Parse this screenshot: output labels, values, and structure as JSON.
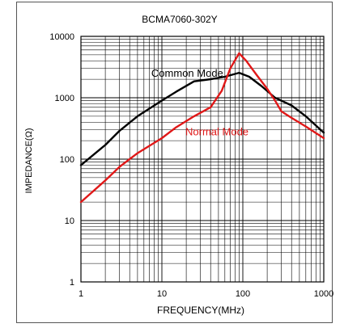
{
  "chart_data": {
    "type": "line",
    "title": "BCMA7060-302Y",
    "xlabel": "FREQUENCY(MHz)",
    "ylabel": "IMPEDANCE(Ω)",
    "xscale": "log",
    "yscale": "log",
    "xlim": [
      1,
      1000
    ],
    "ylim": [
      1,
      10000
    ],
    "grid": true,
    "x_ticks": [
      {
        "value": 1,
        "label": "1"
      },
      {
        "value": 10,
        "label": "10"
      },
      {
        "value": 100,
        "label": "100"
      },
      {
        "value": 1000,
        "label": "1000"
      }
    ],
    "y_ticks": [
      {
        "value": 1,
        "label": "1"
      },
      {
        "value": 10,
        "label": "10"
      },
      {
        "value": 100,
        "label": "100"
      },
      {
        "value": 1000,
        "label": "1000"
      },
      {
        "value": 10000,
        "label": "10000"
      }
    ],
    "series": [
      {
        "name": "Common Mode",
        "color": "#000000",
        "points": [
          [
            1,
            80
          ],
          [
            2,
            170
          ],
          [
            3,
            290
          ],
          [
            5,
            500
          ],
          [
            10,
            900
          ],
          [
            15,
            1250
          ],
          [
            25,
            1850
          ],
          [
            40,
            2000
          ],
          [
            60,
            2200
          ],
          [
            90,
            2550
          ],
          [
            120,
            2200
          ],
          [
            170,
            1550
          ],
          [
            250,
            1000
          ],
          [
            400,
            750
          ],
          [
            600,
            500
          ],
          [
            1000,
            270
          ]
        ]
      },
      {
        "name": "Normal Mode",
        "color": "#e01818",
        "points": [
          [
            1,
            20
          ],
          [
            2,
            45
          ],
          [
            3,
            75
          ],
          [
            5,
            125
          ],
          [
            10,
            220
          ],
          [
            15,
            330
          ],
          [
            25,
            500
          ],
          [
            40,
            700
          ],
          [
            55,
            1300
          ],
          [
            70,
            3000
          ],
          [
            90,
            5300
          ],
          [
            110,
            4000
          ],
          [
            150,
            2300
          ],
          [
            200,
            1400
          ],
          [
            250,
            900
          ],
          [
            300,
            600
          ],
          [
            400,
            470
          ],
          [
            600,
            340
          ],
          [
            1000,
            220
          ]
        ]
      }
    ]
  }
}
